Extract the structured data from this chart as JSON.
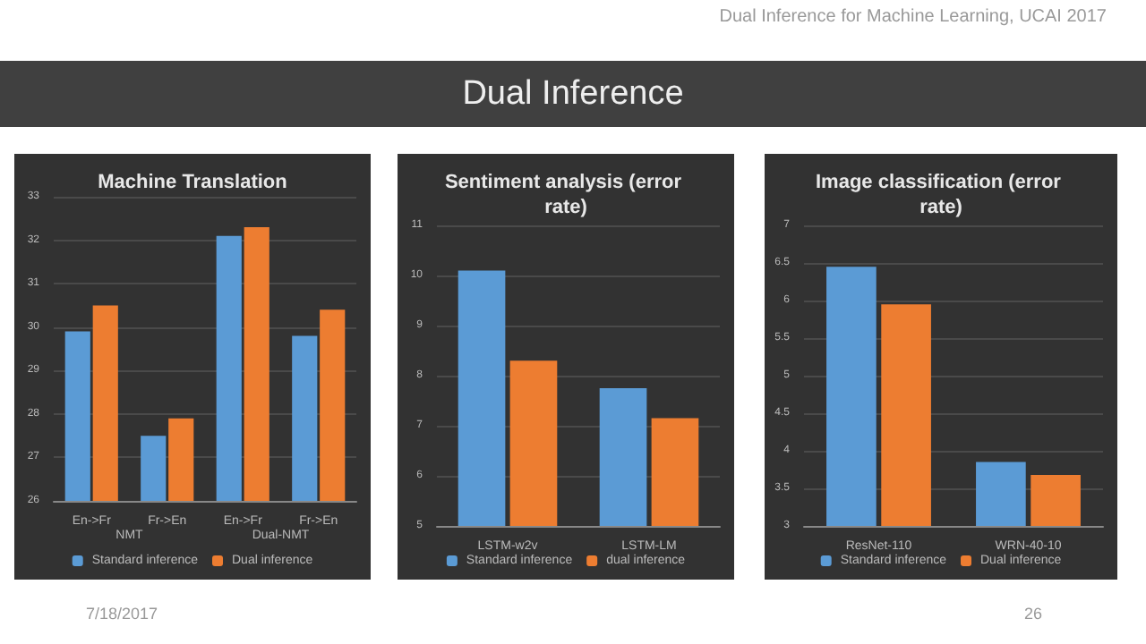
{
  "chart_data": [
    {
      "type": "bar",
      "title": "Machine Translation",
      "categories": [
        "En->Fr",
        "Fr->En",
        "En->Fr",
        "Fr->En"
      ],
      "series": [
        {
          "name": "Standard inference",
          "color": "#5b9bd5",
          "values": [
            29.9,
            27.5,
            32.1,
            29.8
          ]
        },
        {
          "name": "Dual inference",
          "color": "#ed7d31",
          "values": [
            30.5,
            27.9,
            32.3,
            30.4
          ]
        }
      ],
      "ylim": [
        26,
        33
      ],
      "yticks": [
        26,
        27,
        28,
        29,
        30,
        31,
        32,
        33
      ],
      "grid": "y",
      "legend": "bottom",
      "annotations": [
        "NMT",
        "Dual-NMT"
      ]
    },
    {
      "type": "bar",
      "title": "Sentiment analysis (error rate)",
      "categories": [
        "LSTM-w2v",
        "LSTM-LM"
      ],
      "series": [
        {
          "name": "Standard inference",
          "color": "#5b9bd5",
          "values": [
            10.1,
            7.75
          ]
        },
        {
          "name": "dual inference",
          "color": "#ed7d31",
          "values": [
            8.3,
            7.15
          ]
        }
      ],
      "ylim": [
        5,
        11
      ],
      "yticks": [
        5,
        6,
        7,
        8,
        9,
        10,
        11
      ],
      "grid": "y",
      "legend": "bottom"
    },
    {
      "type": "bar",
      "title": "Image classification (error rate)",
      "categories": [
        "ResNet-110",
        "WRN-40-10"
      ],
      "series": [
        {
          "name": "Standard inference",
          "color": "#5b9bd5",
          "values": [
            6.45,
            3.85
          ]
        },
        {
          "name": "Dual inference",
          "color": "#ed7d31",
          "values": [
            5.95,
            3.68
          ]
        }
      ],
      "ylim": [
        3,
        7
      ],
      "yticks": [
        3,
        3.5,
        4,
        4.5,
        5,
        5.5,
        6,
        6.5,
        7
      ],
      "grid": "y",
      "legend": "bottom"
    },
    {
      "type": "other",
      "title": "Dual Inference",
      "annotations": [
        "Dual Inference for Machine Learning, UCAI 2017",
        "7/18/2017",
        "26"
      ]
    }
  ]
}
